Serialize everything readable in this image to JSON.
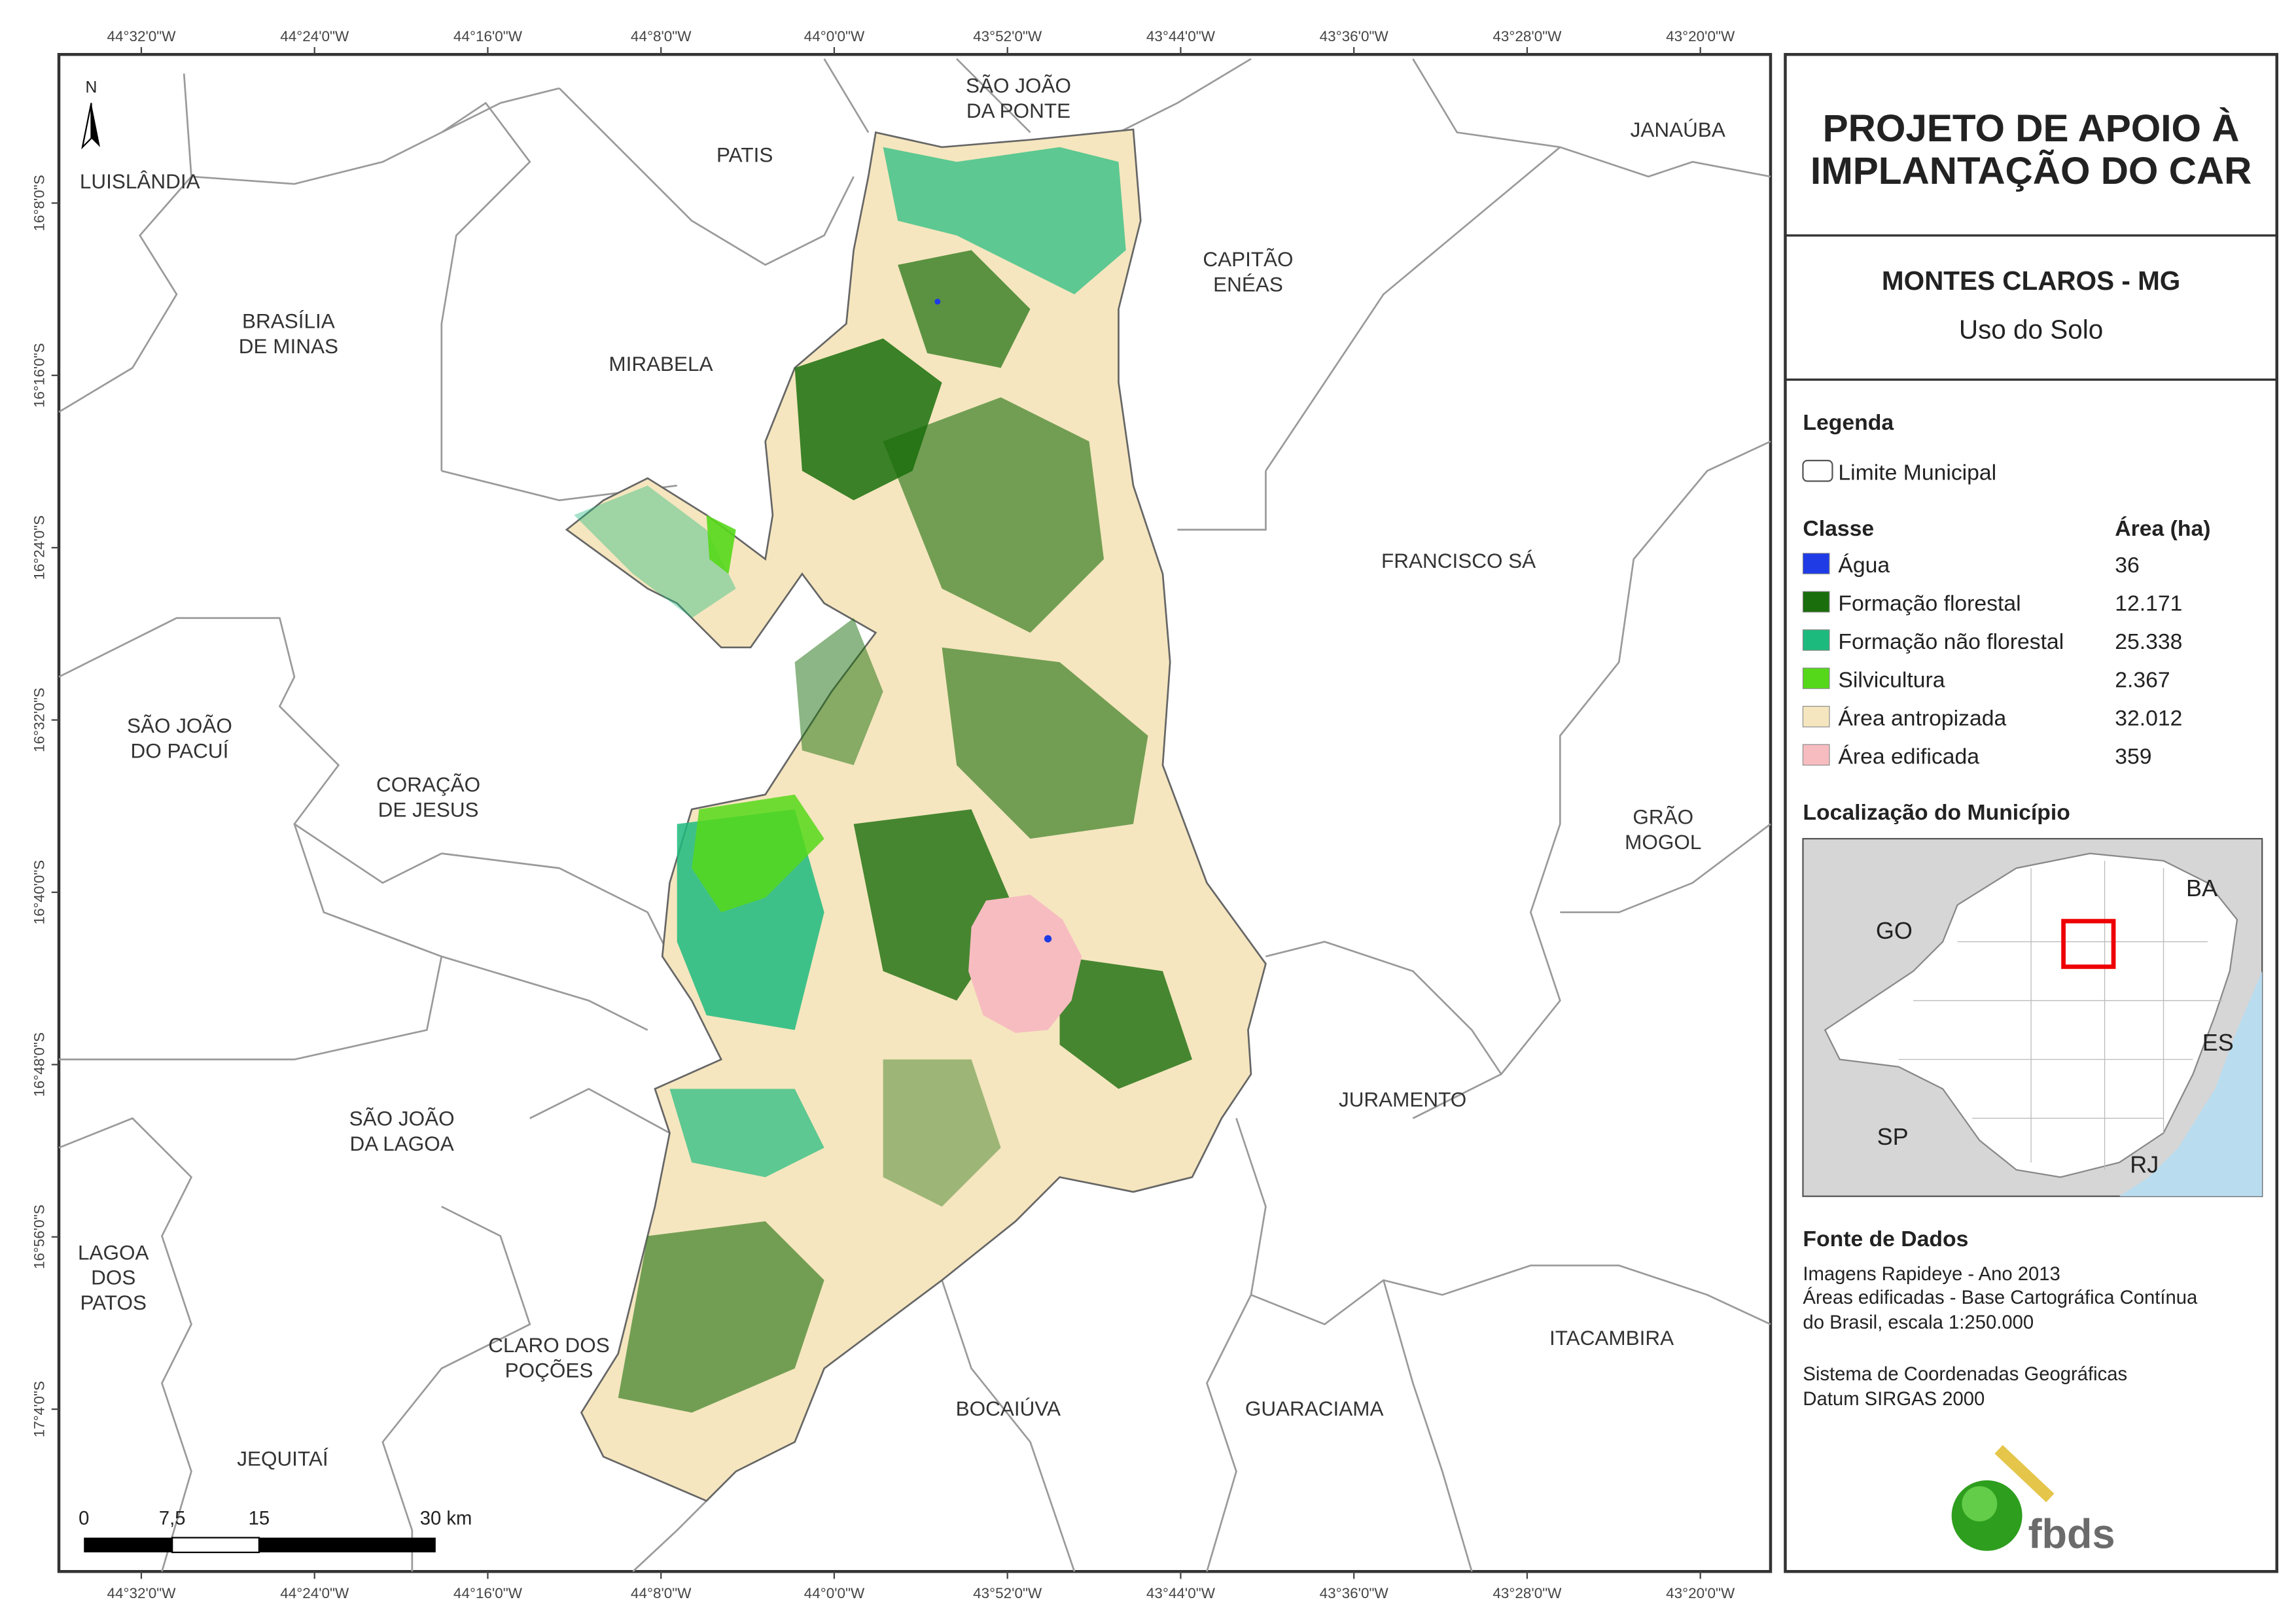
{
  "header": {
    "title": [
      "PROJETO DE APOIO À",
      "IMPLANTAÇÃO DO CAR"
    ],
    "subtitle": "MONTES CLAROS - MG",
    "theme": "Uso do Solo"
  },
  "legend": {
    "title": "Legenda",
    "boundary": "Limite Municipal",
    "class_header": "Classe",
    "area_header": "Área (ha)",
    "rows": [
      {
        "label": "Água",
        "area": "36",
        "color": "#1e3be6"
      },
      {
        "label": "Formação florestal",
        "area": "12.171",
        "color": "#1a6e0c"
      },
      {
        "label": "Formação não florestal",
        "area": "25.338",
        "color": "#1dba7e"
      },
      {
        "label": "Silvicultura",
        "area": "2.367",
        "color": "#56d81a"
      },
      {
        "label": "Área antropizada",
        "area": "32.012",
        "color": "#f5e6bf"
      },
      {
        "label": "Área edificada",
        "area": "359",
        "color": "#f7bcc0"
      }
    ]
  },
  "location": {
    "title": "Localização do Município",
    "labels": [
      "BA",
      "GO",
      "ES",
      "SP",
      "RJ"
    ]
  },
  "sources": {
    "title": "Fonte de Dados",
    "lines": [
      "Imagens Rapideye - Ano 2013",
      "Áreas edificadas - Base Cartográfica Contínua",
      "do Brasil, escala 1:250.000",
      "Sistema de Coordenadas Geográficas",
      "Datum SIRGAS 2000"
    ]
  },
  "logo": "fbds",
  "map": {
    "north": "N",
    "municipalities": [
      {
        "lines": [
          "LUISLÂNDIA"
        ]
      },
      {
        "lines": [
          "PATIS"
        ]
      },
      {
        "lines": [
          "SÃO JOÃO",
          "DA PONTE"
        ]
      },
      {
        "lines": [
          "JANAÚBA"
        ]
      },
      {
        "lines": [
          "CAPITÃO",
          "ENÉAS"
        ]
      },
      {
        "lines": [
          "BRASÍLIA",
          "DE MINAS"
        ]
      },
      {
        "lines": [
          "MIRABELA"
        ]
      },
      {
        "lines": [
          "FRANCISCO SÁ"
        ]
      },
      {
        "lines": [
          "SÃO JOÃO",
          "DO PACUÍ"
        ]
      },
      {
        "lines": [
          "CORAÇÃO",
          "DE JESUS"
        ]
      },
      {
        "lines": [
          "GRÃO",
          "MOGOL"
        ]
      },
      {
        "lines": [
          "JURAMENTO"
        ]
      },
      {
        "lines": [
          "SÃO JOÃO",
          "DA LAGOA"
        ]
      },
      {
        "lines": [
          "LAGOA",
          "DOS",
          "PATOS"
        ]
      },
      {
        "lines": [
          "CLARO DOS",
          "POÇÕES"
        ]
      },
      {
        "lines": [
          "ITACAMBIRA"
        ]
      },
      {
        "lines": [
          "BOCAIÚVA"
        ]
      },
      {
        "lines": [
          "GUARACIAMA"
        ]
      },
      {
        "lines": [
          "JEQUITAÍ"
        ]
      }
    ],
    "scale": [
      "0",
      "7,5",
      "15",
      "30 km"
    ],
    "lon_labels": [
      "44°32'0\"W",
      "44°24'0\"W",
      "44°16'0\"W",
      "44°8'0\"W",
      "44°0'0\"W",
      "43°52'0\"W",
      "43°44'0\"W",
      "43°36'0\"W",
      "43°28'0\"W",
      "43°20'0\"W"
    ],
    "lat_labels": [
      "16°8'0\"S",
      "16°16'0\"S",
      "16°24'0\"S",
      "16°32'0\"S",
      "16°40'0\"S",
      "16°48'0\"S",
      "16°56'0\"S",
      "17°4'0\"S"
    ]
  }
}
